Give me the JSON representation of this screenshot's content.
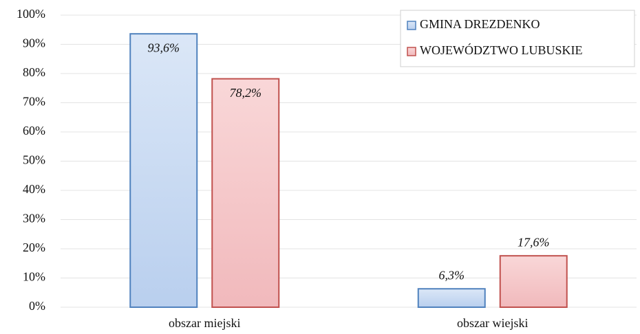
{
  "chart_data": {
    "type": "bar",
    "categories": [
      "obszar miejski",
      "obszar wiejski"
    ],
    "series": [
      {
        "name": "GMINA DREZDENKO",
        "color": "#4f81bd",
        "fill": "#c9dbf3",
        "values": [
          93.6,
          6.3
        ],
        "value_labels": [
          "93,6%",
          "6,3%"
        ]
      },
      {
        "name": "WOJEWÓDZTWO LUBUSKIE",
        "color": "#c0504d",
        "fill": "#f5c6c8",
        "values": [
          78.2,
          17.6
        ],
        "value_labels": [
          "78,2%",
          "17,6%"
        ]
      }
    ],
    "ylim": [
      0,
      100
    ],
    "yticks": [
      {
        "value": 0,
        "label": "0%"
      },
      {
        "value": 10,
        "label": "10%"
      },
      {
        "value": 20,
        "label": "20%"
      },
      {
        "value": 30,
        "label": "30%"
      },
      {
        "value": 40,
        "label": "40%"
      },
      {
        "value": 50,
        "label": "50%"
      },
      {
        "value": 60,
        "label": "60%"
      },
      {
        "value": 70,
        "label": "70%"
      },
      {
        "value": 80,
        "label": "80%"
      },
      {
        "value": 90,
        "label": "90%"
      },
      {
        "value": 100,
        "label": "100%"
      }
    ],
    "grid": true,
    "legend": "top-right"
  }
}
